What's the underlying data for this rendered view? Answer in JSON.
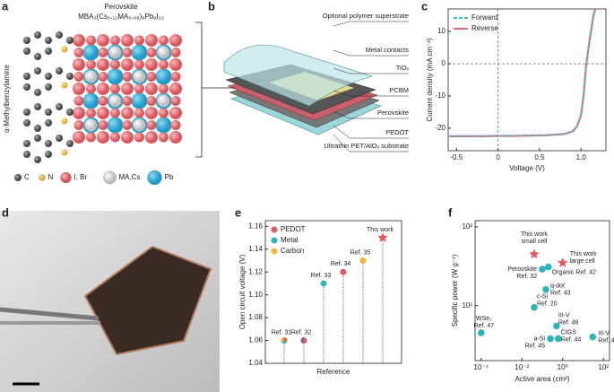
{
  "panel_labels": [
    "a",
    "b",
    "c",
    "d",
    "e",
    "f"
  ],
  "panel_a": {
    "title": "Perovskite",
    "formula": "MBA₂(Cs₀.₁₂MA₀.₈₈)₈Pb₉I₂₂",
    "molecule": "α-Methylbenzylamine",
    "legend": [
      "C",
      "N",
      "I, Br",
      "MA,Cs",
      "Pb"
    ]
  },
  "panel_b": {
    "layers": [
      "Optional polymer superstrate",
      "Metal contacts",
      "TiOₓ",
      "PCBM",
      "Perovskite",
      "PEDOT",
      "Ultrathin PET/AlOₓ substrate"
    ]
  },
  "chart_data": [
    {
      "type": "line",
      "xlabel": "Voltage (V)",
      "ylabel": "Current density (mA cm⁻²)",
      "x": [
        -0.6,
        -0.4,
        -0.2,
        0,
        0.2,
        0.4,
        0.6,
        0.8,
        0.9,
        0.95,
        1.0,
        1.03,
        1.06,
        1.09,
        1.12,
        1.15,
        1.17
      ],
      "series": [
        {
          "name": "Forward",
          "color": "#3fc1c9",
          "dashed": true,
          "values": [
            -22.5,
            -22.5,
            -22.5,
            -22.4,
            -22.4,
            -22.3,
            -22.2,
            -21.8,
            -21,
            -19.5,
            -16,
            -10,
            -1,
            5,
            10,
            15,
            17
          ]
        },
        {
          "name": "Reverse",
          "color": "#e46a6f",
          "dashed": false,
          "values": [
            -22.5,
            -22.5,
            -22.5,
            -22.4,
            -22.4,
            -22.3,
            -22.2,
            -21.8,
            -21,
            -19.5,
            -16,
            -10,
            -1,
            5,
            10,
            15,
            17
          ]
        }
      ],
      "xlim": [
        -0.6,
        1.3
      ],
      "ylim": [
        -27,
        17
      ],
      "xticks": [
        -0.5,
        0,
        0.5,
        {
          "value": 1,
          "label": "1.0"
        }
      ],
      "yticks": [
        -20,
        -10,
        0,
        10
      ],
      "legend": "upper left"
    },
    {
      "type": "stem",
      "xlabel": "Reference",
      "ylabel": "Open circuit voltage (V)",
      "categories": [
        "Ref. 31",
        "Ref. 32",
        "Ref. 33",
        "Ref. 34",
        "Ref. 35",
        "This work"
      ],
      "values": [
        1.06,
        1.06,
        1.11,
        1.12,
        1.13,
        1.15
      ],
      "point_colors": [
        [
          "#e8575e",
          "#2bb5b8",
          "#f5b335"
        ],
        [
          "#e8575e",
          "#7b5ea7"
        ],
        [
          "#2bb5b8"
        ],
        [
          "#e8575e"
        ],
        [
          "#f5b335"
        ],
        [
          "#e8575e"
        ]
      ],
      "markers": [
        "circle",
        "circle",
        "circle",
        "circle",
        "circle",
        "star"
      ],
      "series": [
        {
          "name": "PEDOT",
          "color": "#e8575e"
        },
        {
          "name": "Metal",
          "color": "#2bb5b8"
        },
        {
          "name": "Carbon",
          "color": "#f5b335"
        }
      ],
      "ylim": [
        1.04,
        1.165
      ],
      "yticks": [
        1.04,
        1.06,
        1.08,
        {
          "value": 1.1,
          "label": "1.10"
        },
        1.12,
        1.14,
        1.16
      ],
      "legend": "upper left"
    },
    {
      "type": "scatter",
      "xlabel": "Active area (cm²)",
      "ylabel": "Specific power (W g⁻¹)",
      "log_x": true,
      "log_y": true,
      "x": [
        0.04,
        1,
        0.1,
        0.2,
        0.15,
        0.04,
        0.5,
        0.0001,
        0.25,
        0.6,
        30
      ],
      "values": [
        45,
        35,
        29,
        31,
        16,
        9.5,
        5.5,
        4.5,
        3.8,
        3.8,
        4
      ],
      "labels": [
        [
          "This work",
          "small cell"
        ],
        [
          "This work",
          "large cell"
        ],
        [
          "Perovskite",
          "Ref. 32"
        ],
        [
          "Organic Ref. 42"
        ],
        [
          "q-dot",
          "Ref. 43"
        ],
        [
          "c-Si",
          "Ref. 20"
        ],
        [
          "III-V",
          "Ref. 46"
        ],
        [
          "WSe₂",
          "Ref. 47"
        ],
        [
          "a-Si",
          "Ref. 45"
        ],
        [
          "CIGS",
          "Ref. 44"
        ],
        [
          "III-V",
          "Ref. 46"
        ]
      ],
      "markers": [
        "star",
        "star",
        "circle",
        "circle",
        "circle",
        "circle",
        "circle",
        "circle",
        "circle",
        "circle",
        "circle"
      ],
      "colors": [
        "#e8575e",
        "#e8575e",
        "#2bb5b8",
        "#2bb5b8",
        "#2bb5b8",
        "#2bb5b8",
        "#2bb5b8",
        "#2bb5b8",
        "#2bb5b8",
        "#2bb5b8",
        "#2bb5b8"
      ],
      "xlim": [
        5e-05,
        200
      ],
      "ylim": [
        2,
        120
      ],
      "xticks": [
        {
          "value": 0.0001,
          "label": "10⁻⁴"
        },
        {
          "value": 0.01,
          "label": "10⁻²"
        },
        {
          "value": 1,
          "label": "10⁰"
        },
        {
          "value": 100,
          "label": "10²"
        }
      ],
      "yticks": [
        {
          "value": 10,
          "label": "10¹"
        },
        {
          "value": 100,
          "label": "10²"
        }
      ]
    }
  ]
}
